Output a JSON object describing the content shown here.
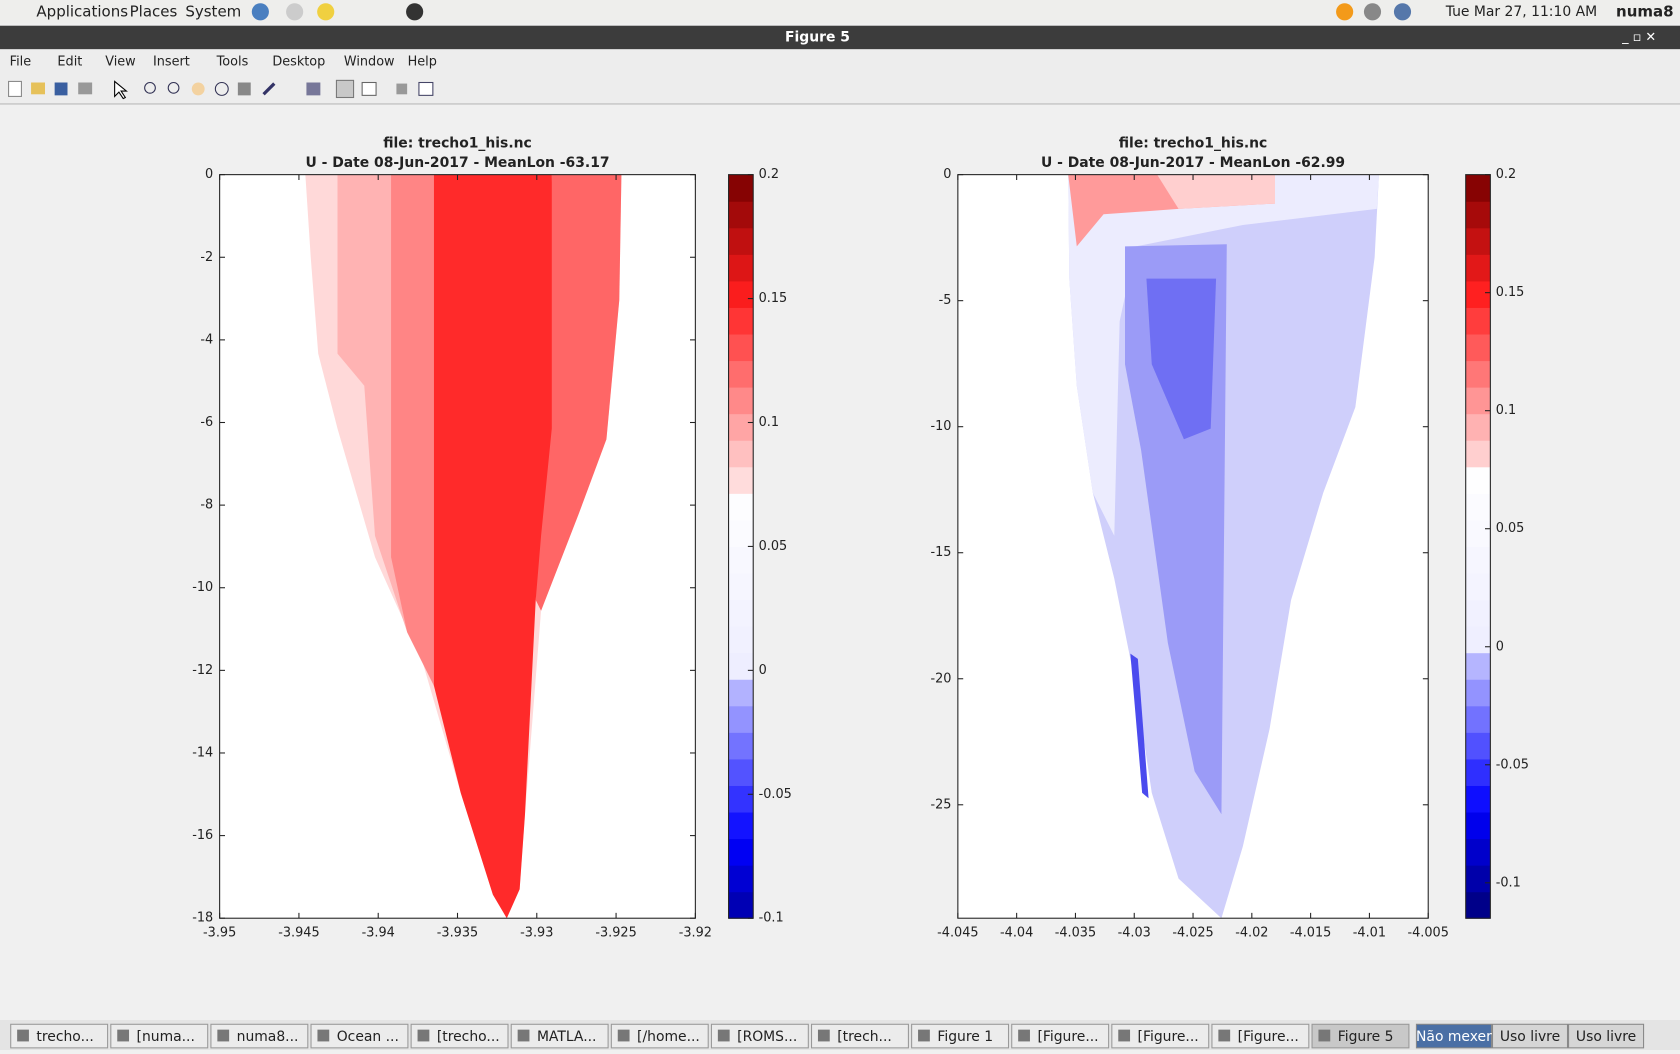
{
  "topbar": {
    "menus": [
      "Applications",
      "Places",
      "System"
    ],
    "clock": "Tue Mar 27, 11:10 AM",
    "user": "numa8"
  },
  "window": {
    "title": "Figure 5",
    "menu": [
      "File",
      "Edit",
      "View",
      "Insert",
      "Tools",
      "Desktop",
      "Window",
      "Help"
    ]
  },
  "figure": [
    {
      "title": [
        "file: trecho1_his.nc",
        "U - Date 08-Jun-2017 - MeanLon -63.17"
      ],
      "xlim": [
        -3.95,
        -3.92
      ],
      "xticks": [
        -3.95,
        -3.945,
        -3.94,
        -3.935,
        -3.93,
        -3.925,
        -3.92
      ],
      "ylim": [
        -18,
        0
      ],
      "yticks": [
        0,
        -2,
        -4,
        -6,
        -8,
        -10,
        -12,
        -14,
        -16,
        -18
      ],
      "clim": [
        -0.1,
        0.2
      ],
      "cticks": [
        0.2,
        0.15,
        0.1,
        0.05,
        0,
        -0.05,
        -0.1
      ]
    },
    {
      "title": [
        "file: trecho1_his.nc",
        "U - Date 08-Jun-2017 - MeanLon -62.99"
      ],
      "xlim": [
        -4.045,
        -4.005
      ],
      "xticks": [
        -4.045,
        -4.04,
        -4.035,
        -4.03,
        -4.025,
        -4.02,
        -4.015,
        -4.01,
        -4.005
      ],
      "ylim": [
        -29.5,
        0
      ],
      "yticks": [
        0,
        -5,
        -10,
        -15,
        -20,
        -25
      ],
      "clim": [
        -0.115,
        0.2
      ],
      "cticks": [
        0.2,
        0.15,
        0.1,
        0.05,
        0,
        -0.05,
        -0.1
      ]
    }
  ],
  "taskbar": {
    "items": [
      "trecho...",
      "[numa...",
      "numa8...",
      "Ocean ...",
      "[trecho...",
      "MATLA...",
      "[/home...",
      "[ROMS...",
      "[trech...",
      "Figure 1",
      "[Figure...",
      "[Figure...",
      "[Figure...",
      "Figure 5"
    ],
    "workspaces": [
      "Não mexer",
      "Uso livre",
      "Uso livre"
    ]
  }
}
